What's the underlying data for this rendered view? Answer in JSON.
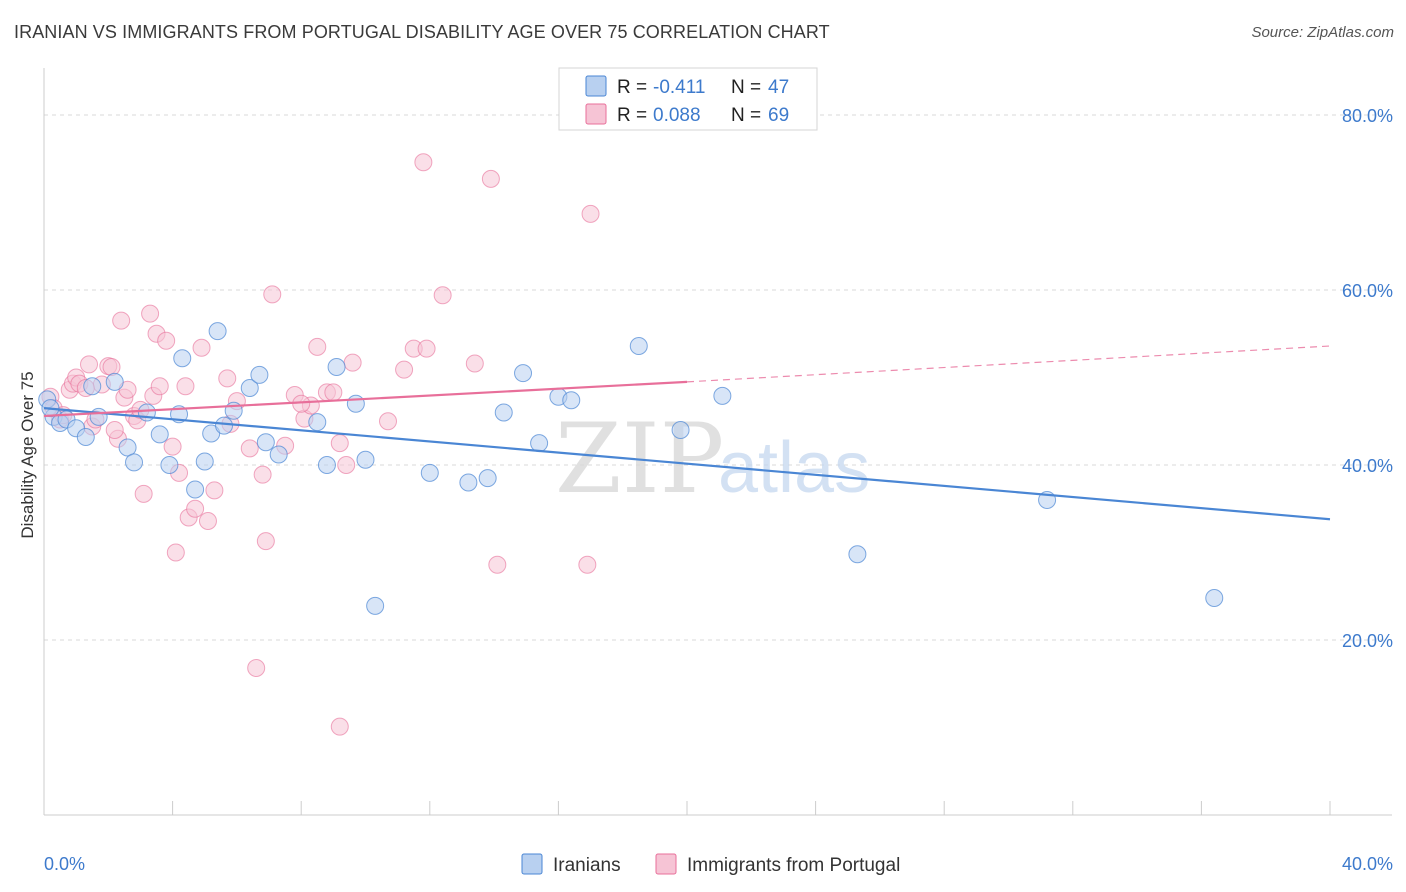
{
  "header": {
    "title": "IRANIAN VS IMMIGRANTS FROM PORTUGAL DISABILITY AGE OVER 75 CORRELATION CHART",
    "source": "Source: ZipAtlas.com"
  },
  "colors": {
    "blue": "#4a86d4",
    "blue_fill": "#b8d0f0",
    "pink": "#e86f9a",
    "pink_fill": "#f6c4d5",
    "tick_text": "#3d7acc",
    "grid": "#d8d8d8"
  },
  "chart_data": {
    "type": "scatter",
    "title": "IRANIAN VS IMMIGRANTS FROM PORTUGAL DISABILITY AGE OVER 75 CORRELATION CHART",
    "xlabel": "",
    "ylabel": "Disability Age Over 75",
    "xlim": [
      0,
      40
    ],
    "ylim": [
      0,
      84
    ],
    "x_tick_labels": [
      "0.0%",
      "40.0%"
    ],
    "y_ticks": [
      20,
      40,
      60,
      80
    ],
    "y_tick_labels": [
      "20.0%",
      "40.0%",
      "60.0%",
      "80.0%"
    ],
    "grid": true,
    "legend_position": "top-center",
    "watermark": "ZIPatlas",
    "legend": {
      "r_label": "R =",
      "n_label": "N ="
    },
    "series": [
      {
        "name": "Iranians",
        "color": "#4a86d4",
        "r": "-0.411",
        "n": "47",
        "trend": {
          "x": [
            0,
            40
          ],
          "y": [
            46.5,
            33.8
          ]
        },
        "points": [
          [
            0.1,
            47.5
          ],
          [
            0.3,
            45.5
          ],
          [
            0.5,
            44.8
          ],
          [
            0.7,
            45.2
          ],
          [
            1.0,
            44.2
          ],
          [
            1.3,
            43.2
          ],
          [
            1.5,
            49.0
          ],
          [
            1.7,
            45.5
          ],
          [
            2.2,
            49.5
          ],
          [
            2.6,
            42.0
          ],
          [
            2.8,
            40.3
          ],
          [
            3.2,
            46.0
          ],
          [
            3.6,
            43.5
          ],
          [
            3.9,
            40.0
          ],
          [
            4.2,
            45.8
          ],
          [
            4.3,
            52.2
          ],
          [
            4.7,
            37.2
          ],
          [
            5.0,
            40.4
          ],
          [
            5.2,
            43.6
          ],
          [
            5.4,
            55.3
          ],
          [
            5.6,
            44.5
          ],
          [
            5.9,
            46.2
          ],
          [
            6.4,
            48.8
          ],
          [
            6.7,
            50.3
          ],
          [
            6.9,
            42.6
          ],
          [
            7.3,
            41.2
          ],
          [
            8.5,
            44.9
          ],
          [
            8.8,
            40.0
          ],
          [
            9.1,
            51.2
          ],
          [
            9.7,
            47.0
          ],
          [
            10.0,
            40.6
          ],
          [
            10.3,
            23.9
          ],
          [
            12.0,
            39.1
          ],
          [
            13.2,
            38.0
          ],
          [
            13.8,
            38.5
          ],
          [
            14.3,
            46.0
          ],
          [
            14.9,
            50.5
          ],
          [
            15.4,
            42.5
          ],
          [
            16.0,
            47.8
          ],
          [
            16.4,
            47.4
          ],
          [
            18.5,
            53.6
          ],
          [
            19.8,
            44.0
          ],
          [
            21.1,
            47.9
          ],
          [
            25.3,
            29.8
          ],
          [
            31.2,
            36.0
          ],
          [
            36.4,
            24.8
          ],
          [
            0.2,
            46.5
          ]
        ]
      },
      {
        "name": "Immigrants from Portugal",
        "color": "#e86f9a",
        "r": "0.088",
        "n": "69",
        "trend": {
          "x": [
            0,
            20
          ],
          "y": [
            45.6,
            49.5
          ]
        },
        "trend_dashed": {
          "x": [
            20,
            40
          ],
          "y": [
            49.5,
            53.6
          ]
        },
        "points": [
          [
            0.2,
            47.8
          ],
          [
            0.3,
            46.5
          ],
          [
            0.5,
            45.2
          ],
          [
            0.8,
            48.6
          ],
          [
            0.9,
            49.3
          ],
          [
            1.0,
            50.0
          ],
          [
            1.1,
            49.3
          ],
          [
            1.4,
            51.5
          ],
          [
            1.5,
            44.4
          ],
          [
            1.6,
            45.2
          ],
          [
            1.8,
            49.2
          ],
          [
            2.0,
            51.3
          ],
          [
            2.1,
            51.2
          ],
          [
            2.3,
            43.0
          ],
          [
            2.4,
            56.5
          ],
          [
            2.5,
            47.7
          ],
          [
            2.6,
            48.6
          ],
          [
            2.8,
            45.6
          ],
          [
            2.9,
            45.1
          ],
          [
            3.0,
            46.3
          ],
          [
            3.1,
            36.7
          ],
          [
            3.3,
            57.3
          ],
          [
            3.4,
            47.9
          ],
          [
            3.5,
            55.0
          ],
          [
            3.6,
            49.0
          ],
          [
            3.8,
            54.2
          ],
          [
            4.0,
            42.1
          ],
          [
            4.1,
            30.0
          ],
          [
            4.2,
            39.1
          ],
          [
            4.4,
            49.0
          ],
          [
            4.5,
            34.0
          ],
          [
            4.7,
            35.0
          ],
          [
            4.9,
            53.4
          ],
          [
            5.1,
            33.6
          ],
          [
            5.3,
            37.1
          ],
          [
            5.7,
            49.9
          ],
          [
            5.8,
            44.7
          ],
          [
            6.0,
            47.3
          ],
          [
            6.4,
            41.9
          ],
          [
            6.6,
            16.8
          ],
          [
            6.8,
            38.9
          ],
          [
            6.9,
            31.3
          ],
          [
            7.1,
            59.5
          ],
          [
            7.5,
            42.2
          ],
          [
            7.8,
            48.0
          ],
          [
            8.1,
            45.3
          ],
          [
            8.3,
            46.8
          ],
          [
            8.5,
            53.5
          ],
          [
            8.8,
            48.3
          ],
          [
            9.0,
            48.3
          ],
          [
            9.2,
            10.1
          ],
          [
            9.4,
            40.0
          ],
          [
            9.6,
            51.7
          ],
          [
            10.7,
            45.0
          ],
          [
            11.2,
            50.9
          ],
          [
            11.5,
            53.3
          ],
          [
            11.8,
            74.6
          ],
          [
            11.9,
            53.3
          ],
          [
            12.4,
            59.4
          ],
          [
            13.4,
            51.6
          ],
          [
            13.9,
            72.7
          ],
          [
            14.1,
            28.6
          ],
          [
            17.0,
            68.7
          ],
          [
            16.9,
            28.6
          ],
          [
            2.2,
            44.0
          ],
          [
            1.3,
            48.8
          ],
          [
            0.6,
            45.7
          ],
          [
            8.0,
            47.0
          ],
          [
            9.2,
            42.5
          ]
        ]
      }
    ]
  }
}
